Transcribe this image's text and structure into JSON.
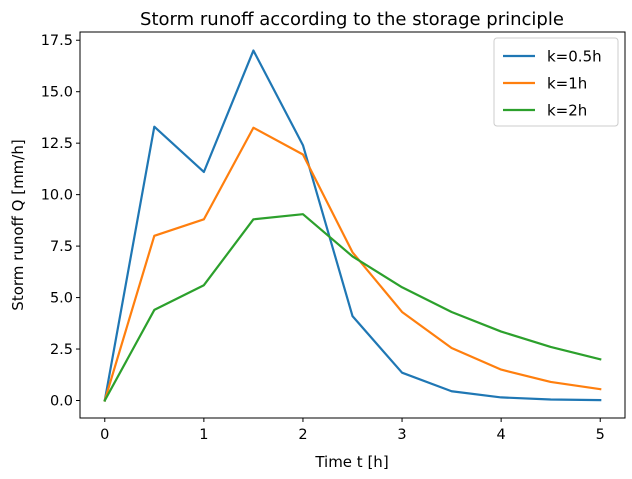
{
  "chart_data": {
    "type": "line",
    "title": "Storm runoff according to the storage principle",
    "xlabel": "Time t [h]",
    "ylabel": "Storm runoff Q [mm/h]",
    "x": [
      0,
      0.5,
      1,
      1.5,
      2,
      2.5,
      3,
      3.5,
      4,
      4.5,
      5
    ],
    "xlim": [
      -0.25,
      5.25
    ],
    "ylim": [
      -0.85,
      17.9
    ],
    "xticks": [
      0,
      1,
      2,
      3,
      4,
      5
    ],
    "xtick_labels": [
      "0",
      "1",
      "2",
      "3",
      "4",
      "5"
    ],
    "yticks": [
      0,
      2.5,
      5,
      7.5,
      10,
      12.5,
      15,
      17.5
    ],
    "ytick_labels": [
      "0.0",
      "2.5",
      "5.0",
      "7.5",
      "10.0",
      "12.5",
      "15.0",
      "17.5"
    ],
    "grid": false,
    "legend": "top-right",
    "series": [
      {
        "name": "k=0.5h",
        "color": "#1f77b4",
        "values": [
          0,
          13.3,
          11.1,
          17.0,
          12.4,
          4.1,
          1.35,
          0.45,
          0.15,
          0.05,
          0.02
        ]
      },
      {
        "name": "k=1h",
        "color": "#ff7f0e",
        "values": [
          0,
          8.0,
          8.8,
          13.25,
          11.95,
          7.2,
          4.3,
          2.55,
          1.5,
          0.9,
          0.55
        ]
      },
      {
        "name": "k=2h",
        "color": "#2ca02c",
        "values": [
          0,
          4.4,
          5.6,
          8.8,
          9.05,
          7.0,
          5.5,
          4.3,
          3.35,
          2.6,
          2.0
        ]
      }
    ]
  }
}
